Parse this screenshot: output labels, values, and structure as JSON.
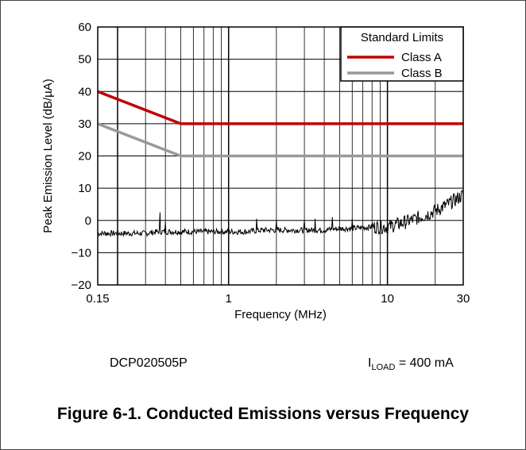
{
  "chart_data": {
    "type": "line",
    "xlabel": "Frequency (MHz)",
    "ylabel": "Peak Emission Level (dB/µA)",
    "x_scale": "log",
    "xlim": [
      0.15,
      30
    ],
    "ylim": [
      -20,
      60
    ],
    "x_ticks": [
      "0.15",
      "1",
      "10",
      "30"
    ],
    "y_ticks": [
      "60",
      "50",
      "40",
      "30",
      "20",
      "10",
      "0",
      "−10",
      "−20"
    ],
    "grid": true,
    "legend": {
      "title": "Standard Limits",
      "position": "top-right"
    },
    "series": [
      {
        "name": "Class A",
        "color": "#c00000",
        "x": [
          0.15,
          0.5,
          30
        ],
        "y": [
          40,
          30,
          30
        ]
      },
      {
        "name": "Class B",
        "color": "#999999",
        "x": [
          0.15,
          0.5,
          30
        ],
        "y": [
          30,
          20,
          20
        ]
      },
      {
        "color": "#000000",
        "x": [
          0.15,
          0.18,
          0.22,
          0.26,
          0.3,
          0.36,
          0.4,
          0.45,
          0.5,
          0.6,
          0.8,
          1.0,
          1.3,
          1.6,
          2.0,
          2.5,
          3.0,
          4.0,
          5.0,
          6.0,
          8.0,
          10,
          12,
          14,
          16,
          18,
          20,
          22,
          24,
          26,
          28,
          30
        ],
        "y": [
          -4,
          -4,
          -4,
          -4,
          -4,
          -3.5,
          -3.5,
          -3.5,
          -3.5,
          -3.5,
          -3.5,
          -3.5,
          -3.5,
          -3,
          -3,
          -3,
          -3,
          -3,
          -2.5,
          -2.5,
          -2,
          -2,
          -1,
          0,
          1,
          2,
          3,
          4,
          5,
          6,
          7,
          8
        ]
      }
    ],
    "spikes": [
      {
        "x": 0.37,
        "y": 2.5
      },
      {
        "x": 0.4,
        "y": -0.5
      },
      {
        "x": 1.5,
        "y": 0.5
      },
      {
        "x": 2.0,
        "y": 0
      },
      {
        "x": 3.0,
        "y": 0
      },
      {
        "x": 3.5,
        "y": 0.5
      },
      {
        "x": 4.5,
        "y": 1
      },
      {
        "x": 6.0,
        "y": 0.5
      }
    ]
  },
  "footer": {
    "part": "DCP020505P",
    "load_symbol": "I",
    "load_subscript": "LOAD",
    "load_value": " = 400 mA"
  },
  "caption": "Figure 6-1. Conducted Emissions versus Frequency"
}
